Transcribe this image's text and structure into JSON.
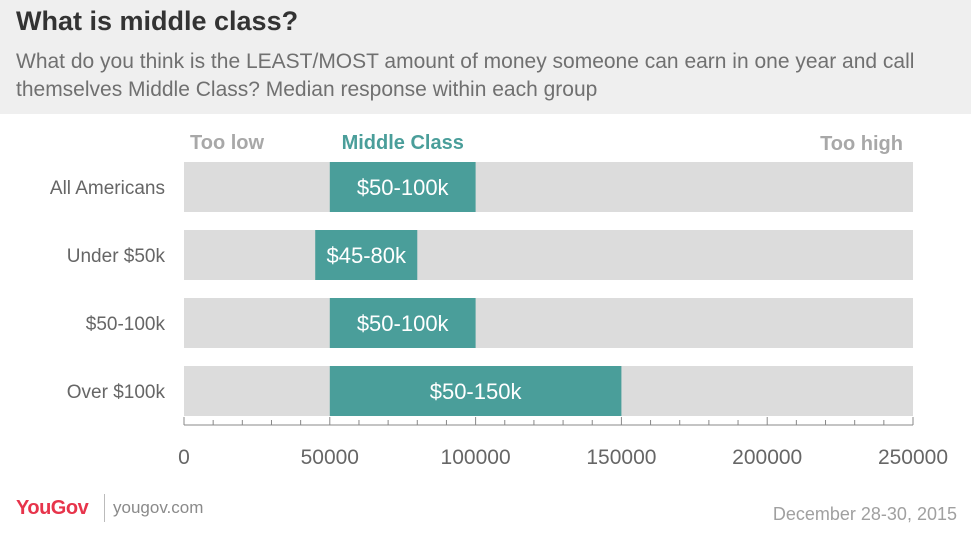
{
  "header": {
    "title": "What is middle class?",
    "subtitle": "What do you think is the LEAST/MOST amount of money someone can earn in one year and call themselves Middle Class? Median response within each group"
  },
  "footer": {
    "logo_you": "You",
    "logo_gov": "Gov",
    "site": "yougov.com",
    "date": "December 28-30, 2015"
  },
  "chart_data": {
    "type": "bar",
    "orientation": "horizontal-range",
    "zone_labels": {
      "low": "Too low",
      "middle": "Middle Class",
      "high": "Too high"
    },
    "categories": [
      "All Americans",
      "Under $50k",
      "$50-100k",
      "Over $100k"
    ],
    "ranges": [
      {
        "min": 50000,
        "max": 100000,
        "label": "$50-100k"
      },
      {
        "min": 45000,
        "max": 80000,
        "label": "$45-80k"
      },
      {
        "min": 50000,
        "max": 100000,
        "label": "$50-100k"
      },
      {
        "min": 50000,
        "max": 150000,
        "label": "$50-150k"
      }
    ],
    "xlim": [
      0,
      250000
    ],
    "xticks": [
      0,
      50000,
      100000,
      150000,
      200000,
      250000
    ],
    "xtick_labels": [
      "0",
      "50000",
      "100000",
      "150000",
      "200000",
      "250000"
    ],
    "minor_tick_step": 10000,
    "grid": false,
    "colors": {
      "background_bar": "#dcdcdc",
      "range_bar": "#4a9e9a",
      "zone_low": "#a8a8a8",
      "zone_middle": "#4a9e9a",
      "zone_high": "#a8a8a8",
      "category_text": "#666666",
      "axis": "#888888"
    }
  }
}
